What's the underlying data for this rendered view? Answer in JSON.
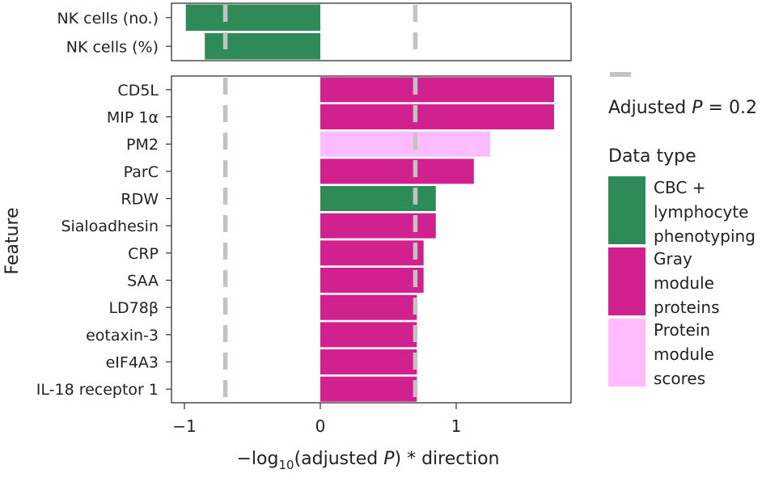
{
  "chart_data": [
    {
      "type": "bar",
      "orientation": "horizontal",
      "panel": "top",
      "categories": [
        "NK cells (no.)",
        "NK cells (%)"
      ],
      "values": [
        -0.99,
        -0.85
      ],
      "data_types": [
        "CBC + lymphocyte phenotyping",
        "CBC + lymphocyte phenotyping"
      ],
      "xlim": [
        -1.1,
        1.8
      ]
    },
    {
      "type": "bar",
      "orientation": "horizontal",
      "panel": "bottom",
      "ylabel": "Feature",
      "categories": [
        "CD5L",
        "MIP 1α",
        "PM2",
        "ParC",
        "RDW",
        "Sialoadhesin",
        "CRP",
        "SAA",
        "LD78β",
        "eotaxin-3",
        "eIF4A3",
        "IL-18 receptor 1"
      ],
      "values": [
        1.72,
        1.72,
        1.25,
        1.13,
        0.85,
        0.85,
        0.76,
        0.76,
        0.71,
        0.71,
        0.71,
        0.71
      ],
      "data_types": [
        "Gray module proteins",
        "Gray module proteins",
        "Protein module scores",
        "Gray module proteins",
        "CBC + lymphocyte phenotyping",
        "Gray module proteins",
        "Gray module proteins",
        "Gray module proteins",
        "Gray module proteins",
        "Gray module proteins",
        "Gray module proteins",
        "Gray module proteins"
      ],
      "xlim": [
        -1.1,
        1.8
      ],
      "x_ticks": [
        -1,
        0,
        1
      ],
      "x_tick_labels": [
        "−1",
        "0",
        "1"
      ],
      "xlabel": {
        "prefix": "−log",
        "subscript": "10",
        "middle": "(adjusted ",
        "italic": "P",
        "suffix": ") * direction"
      }
    }
  ],
  "threshold": {
    "values": [
      -0.699,
      0.699
    ],
    "legend": {
      "prefix": "Adjusted ",
      "italic": "P",
      "suffix": " = 0.2"
    }
  },
  "legend": {
    "title": "Data type",
    "entries": [
      {
        "key": "CBC + lymphocyte phenotyping",
        "lines": [
          "CBC +",
          "lymphocyte",
          "phenotyping"
        ],
        "color": "#2e8b57"
      },
      {
        "key": "Gray module proteins",
        "lines": [
          "Gray",
          "module",
          "proteins"
        ],
        "color": "#d0218f"
      },
      {
        "key": "Protein module scores",
        "lines": [
          "Protein",
          "module",
          "scores"
        ],
        "color": "#ffbdff"
      }
    ]
  },
  "colors": {
    "threshold_line": "#c3c3c3",
    "frame": "#333333"
  }
}
